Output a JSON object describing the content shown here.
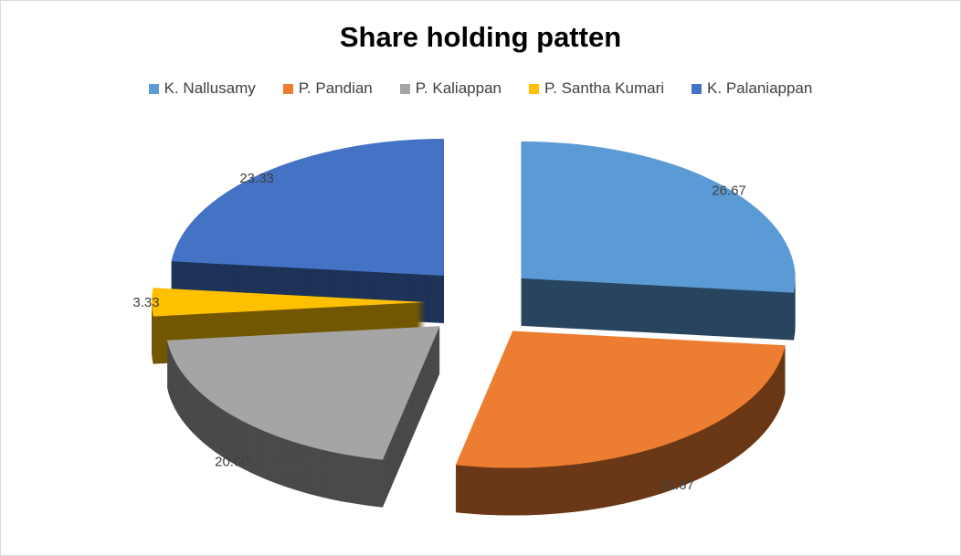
{
  "chart_data": {
    "type": "pie",
    "style": "3d-exploded",
    "title": "Share holding patten",
    "legend_position": "top",
    "categories": [
      "K. Nallusamy",
      "P. Pandian",
      "P. Kaliappan",
      "P. Santha Kumari",
      "K. Palaniappan"
    ],
    "values": [
      26.67,
      26.67,
      20.0,
      3.33,
      23.33
    ],
    "labels": [
      "26.67",
      "26.67",
      "20.00",
      "3.33",
      "23.33"
    ],
    "colors": [
      "#5B9BD5",
      "#ED7D31",
      "#A5A5A5",
      "#FFC000",
      "#4472C4"
    ]
  }
}
